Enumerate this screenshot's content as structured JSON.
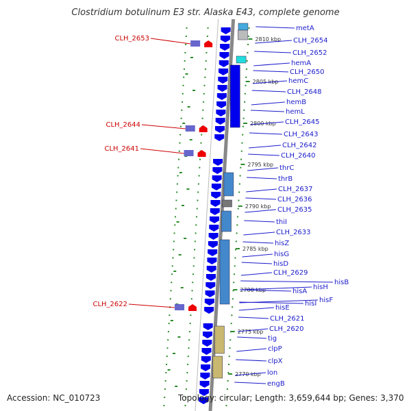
{
  "title": "Clostridium botulinum E3 str. Alaska E43, complete genome",
  "footer": {
    "accession": "Accession: NC_010723",
    "summary": "Topology: circular; Length: 3,659,644 bp; Genes: 3,370"
  },
  "colors": {
    "gene_blue": "#0000ee",
    "label_blue": "#1a1acc",
    "label_red": "#cc0000",
    "backbone": "#888888",
    "gc_dots": "#2a8a2a"
  },
  "kbp_ticks": [
    "2810 kbp",
    "2805 kbp",
    "2800 kbp",
    "2795 kbp",
    "2790 kbp",
    "2785 kbp",
    "2780 kbp",
    "2775 kbp",
    "2770 kbp"
  ],
  "right_labels": [
    "metA",
    "CLH_2654",
    "CLH_2652",
    "hemA",
    "CLH_2650",
    "hemC",
    "CLH_2648",
    "hemB",
    "hemL",
    "CLH_2645",
    "CLH_2643",
    "CLH_2642",
    "CLH_2640",
    "thrC",
    "thrB",
    "CLH_2637",
    "CLH_2636",
    "CLH_2635",
    "thiI",
    "CLH_2633",
    "hisZ",
    "hisG",
    "hisD",
    "CLH_2629",
    "hisB",
    "hisH",
    "hisA",
    "hisF",
    "hisI",
    "hisE",
    "CLH_2621",
    "CLH_2620",
    "tig",
    "clpP",
    "clpX",
    "lon",
    "engB"
  ],
  "left_labels": [
    "CLH_2653",
    "CLH_2644",
    "CLH_2641",
    "CLH_2622"
  ]
}
